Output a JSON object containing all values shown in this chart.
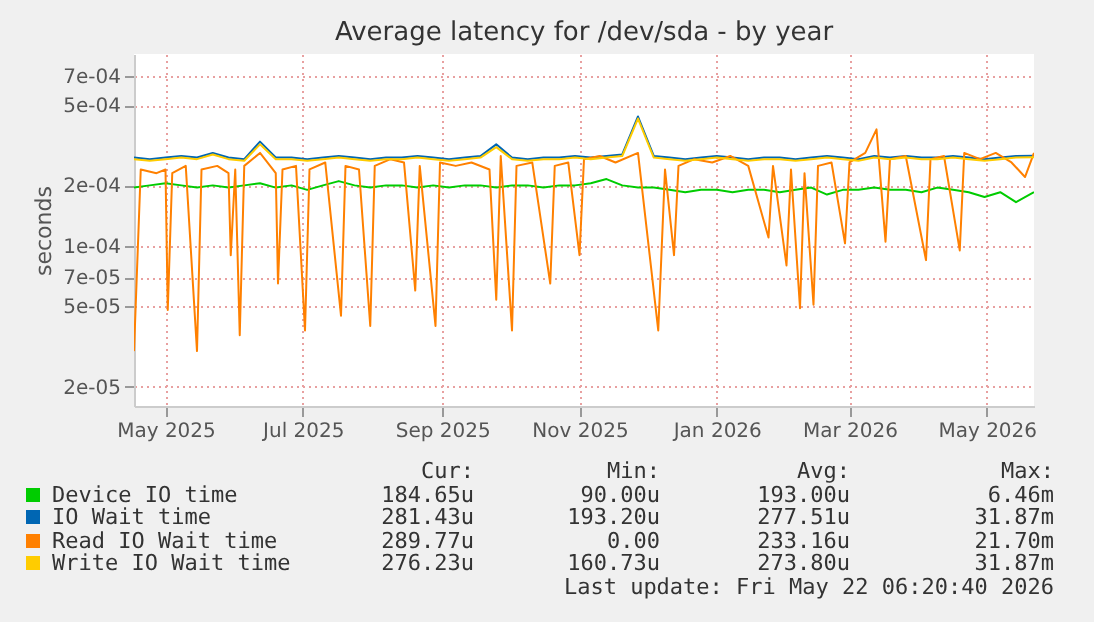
{
  "chart_data": {
    "type": "line",
    "title": "Average latency for /dev/sda - by year",
    "ylabel": "seconds",
    "log": "y",
    "grid": true,
    "legend": "bottom",
    "xlim": [
      "2025-04-17",
      "2026-05-22"
    ],
    "xticks": [
      {
        "value": "2025-05-01",
        "label": "May 2025"
      },
      {
        "value": "2025-07-01",
        "label": "Jul 2025"
      },
      {
        "value": "2025-09-01",
        "label": "Sep 2025"
      },
      {
        "value": "2025-11-01",
        "label": "Nov 2025"
      },
      {
        "value": "2026-01-01",
        "label": "Jan 2026"
      },
      {
        "value": "2026-03-01",
        "label": "Mar 2026"
      },
      {
        "value": "2026-05-01",
        "label": "May 2026"
      }
    ],
    "ylim": [
      1.6e-05,
      0.0009
    ],
    "yticks": [
      {
        "value": 2e-05,
        "label": "2e-05"
      },
      {
        "value": 5e-05,
        "label": "5e-05"
      },
      {
        "value": 7e-05,
        "label": "7e-05"
      },
      {
        "value": 0.0001,
        "label": "1e-04"
      },
      {
        "value": 0.0002,
        "label": "2e-04"
      },
      {
        "value": 0.0005,
        "label": "5e-04"
      },
      {
        "value": 0.0007,
        "label": "7e-04"
      }
    ],
    "x": [
      "2025-04-17",
      "2025-04-24",
      "2025-05-01",
      "2025-05-08",
      "2025-05-15",
      "2025-05-22",
      "2025-05-29",
      "2025-06-05",
      "2025-06-12",
      "2025-06-19",
      "2025-06-26",
      "2025-07-03",
      "2025-07-10",
      "2025-07-17",
      "2025-07-24",
      "2025-07-31",
      "2025-08-07",
      "2025-08-14",
      "2025-08-21",
      "2025-08-28",
      "2025-09-04",
      "2025-09-11",
      "2025-09-18",
      "2025-09-25",
      "2025-10-02",
      "2025-10-09",
      "2025-10-16",
      "2025-10-23",
      "2025-10-30",
      "2025-11-06",
      "2025-11-13",
      "2025-11-20",
      "2025-11-27",
      "2025-12-04",
      "2025-12-11",
      "2025-12-18",
      "2025-12-25",
      "2026-01-01",
      "2026-01-08",
      "2026-01-15",
      "2026-01-22",
      "2026-01-29",
      "2026-02-05",
      "2026-02-12",
      "2026-02-19",
      "2026-02-26",
      "2026-03-05",
      "2026-03-12",
      "2026-03-19",
      "2026-03-26",
      "2026-04-02",
      "2026-04-09",
      "2026-04-16",
      "2026-04-23",
      "2026-04-30",
      "2026-05-07",
      "2026-05-14",
      "2026-05-22"
    ],
    "series": [
      {
        "name": "Device IO time",
        "color": "#00cc00",
        "values": [
          0.000195,
          0.0002,
          0.000205,
          0.0002,
          0.000195,
          0.0002,
          0.000195,
          0.0002,
          0.000205,
          0.000195,
          0.0002,
          0.00019,
          0.0002,
          0.00021,
          0.0002,
          0.000195,
          0.0002,
          0.0002,
          0.000195,
          0.0002,
          0.000195,
          0.0002,
          0.0002,
          0.000195,
          0.0002,
          0.0002,
          0.000195,
          0.0002,
          0.0002,
          0.000205,
          0.000215,
          0.0002,
          0.000195,
          0.000195,
          0.00019,
          0.000185,
          0.00019,
          0.00019,
          0.000185,
          0.00019,
          0.00019,
          0.000185,
          0.00019,
          0.000195,
          0.00018,
          0.00019,
          0.00019,
          0.000195,
          0.00019,
          0.00019,
          0.000185,
          0.000195,
          0.00019,
          0.000185,
          0.000175,
          0.000185,
          0.000165,
          0.000185
        ]
      },
      {
        "name": "IO Wait time",
        "color": "#0066b3",
        "values": [
          0.000275,
          0.00027,
          0.000275,
          0.00028,
          0.000275,
          0.00029,
          0.000275,
          0.00027,
          0.00033,
          0.000275,
          0.000275,
          0.00027,
          0.000275,
          0.00028,
          0.000275,
          0.00027,
          0.000275,
          0.000275,
          0.00028,
          0.000275,
          0.00027,
          0.000275,
          0.00028,
          0.00032,
          0.000275,
          0.00027,
          0.000275,
          0.000275,
          0.00028,
          0.000275,
          0.00028,
          0.000285,
          0.00044,
          0.00028,
          0.000275,
          0.00027,
          0.000275,
          0.00028,
          0.000275,
          0.00027,
          0.000275,
          0.000275,
          0.00027,
          0.000275,
          0.00028,
          0.000275,
          0.00027,
          0.00028,
          0.000275,
          0.00028,
          0.000275,
          0.000275,
          0.00028,
          0.000275,
          0.00027,
          0.000275,
          0.00028,
          0.000281
        ]
      },
      {
        "name": "Read IO Wait time",
        "color": "#ff8000",
        "x": [
          "2025-04-17",
          "2025-04-20",
          "2025-04-27",
          "2025-05-01",
          "2025-05-02",
          "2025-05-04",
          "2025-05-10",
          "2025-05-15",
          "2025-05-17",
          "2025-05-24",
          "2025-05-29",
          "2025-05-30",
          "2025-06-01",
          "2025-06-03",
          "2025-06-05",
          "2025-06-12",
          "2025-06-19",
          "2025-06-20",
          "2025-06-22",
          "2025-06-28",
          "2025-07-02",
          "2025-07-04",
          "2025-07-11",
          "2025-07-18",
          "2025-07-20",
          "2025-07-26",
          "2025-07-31",
          "2025-08-02",
          "2025-08-09",
          "2025-08-15",
          "2025-08-20",
          "2025-08-22",
          "2025-08-29",
          "2025-08-31",
          "2025-09-07",
          "2025-09-14",
          "2025-09-22",
          "2025-09-25",
          "2025-09-27",
          "2025-10-02",
          "2025-10-04",
          "2025-10-11",
          "2025-10-19",
          "2025-10-21",
          "2025-10-27",
          "2025-11-01",
          "2025-11-03",
          "2025-11-10",
          "2025-11-17",
          "2025-11-27",
          "2025-12-06",
          "2025-12-09",
          "2025-12-13",
          "2025-12-15",
          "2025-12-22",
          "2025-12-30",
          "2026-01-07",
          "2026-01-15",
          "2026-01-24",
          "2026-01-26",
          "2026-02-01",
          "2026-02-03",
          "2026-02-07",
          "2026-02-09",
          "2026-02-13",
          "2026-02-15",
          "2026-02-21",
          "2026-02-27",
          "2026-03-01",
          "2026-03-08",
          "2026-03-13",
          "2026-03-17",
          "2026-03-19",
          "2026-03-26",
          "2026-04-04",
          "2026-04-06",
          "2026-04-12",
          "2026-04-19",
          "2026-04-21",
          "2026-04-28",
          "2026-05-05",
          "2026-05-12",
          "2026-05-18",
          "2026-05-22"
        ],
        "values": [
          3e-05,
          0.00024,
          0.00023,
          0.00024,
          4.8e-05,
          0.00023,
          0.00025,
          3e-05,
          0.00024,
          0.00025,
          0.00023,
          9e-05,
          0.00024,
          3.6e-05,
          0.00025,
          0.00029,
          0.00023,
          6.5e-05,
          0.00024,
          0.00025,
          3.8e-05,
          0.00024,
          0.00026,
          4.5e-05,
          0.00025,
          0.00024,
          4e-05,
          0.00025,
          0.00027,
          0.00026,
          6e-05,
          0.00025,
          4e-05,
          0.00026,
          0.00025,
          0.00026,
          0.00024,
          5.4e-05,
          0.00028,
          3.8e-05,
          0.00025,
          0.00026,
          6.5e-05,
          0.00025,
          0.00026,
          9e-05,
          0.00027,
          0.00028,
          0.00026,
          0.00029,
          3.8e-05,
          0.00024,
          9e-05,
          0.00025,
          0.00027,
          0.00026,
          0.00028,
          0.00025,
          0.00011,
          0.00025,
          8e-05,
          0.00024,
          4.9e-05,
          0.00023,
          5.1e-05,
          0.00025,
          0.00026,
          0.000103,
          0.00026,
          0.00029,
          0.00038,
          0.000105,
          0.00027,
          0.00028,
          8.5e-05,
          0.00027,
          0.00028,
          9.5e-05,
          0.00029,
          0.00027,
          0.00029,
          0.00026,
          0.00022,
          0.00029
        ]
      },
      {
        "name": "Write IO Wait time",
        "color": "#ffcc00",
        "values": [
          0.00027,
          0.000265,
          0.00027,
          0.000275,
          0.00027,
          0.000285,
          0.00027,
          0.000265,
          0.00032,
          0.00027,
          0.00027,
          0.000265,
          0.00027,
          0.000275,
          0.00027,
          0.000265,
          0.00027,
          0.00027,
          0.000275,
          0.00027,
          0.000265,
          0.00027,
          0.000275,
          0.00031,
          0.00027,
          0.000265,
          0.00027,
          0.00027,
          0.000275,
          0.00027,
          0.000275,
          0.00028,
          0.00043,
          0.000275,
          0.00027,
          0.000265,
          0.00027,
          0.000275,
          0.00027,
          0.000265,
          0.00027,
          0.00027,
          0.000265,
          0.00027,
          0.000275,
          0.00027,
          0.000265,
          0.000275,
          0.00027,
          0.000275,
          0.00027,
          0.00027,
          0.000275,
          0.00027,
          0.000265,
          0.00027,
          0.000275,
          0.000276
        ]
      }
    ],
    "annotations": [
      "Cur:",
      "Min:",
      "Avg:",
      "Max:",
      "184.65u",
      "90.00u",
      "193.00u",
      "6.46m",
      "281.43u",
      "193.20u",
      "277.51u",
      "31.87m",
      "289.77u",
      "0.00",
      "233.16u",
      "21.70m",
      "276.23u",
      "160.73u",
      "273.80u",
      "31.87m",
      "Last update: Fri May 22 06:20:40 2026"
    ]
  }
}
